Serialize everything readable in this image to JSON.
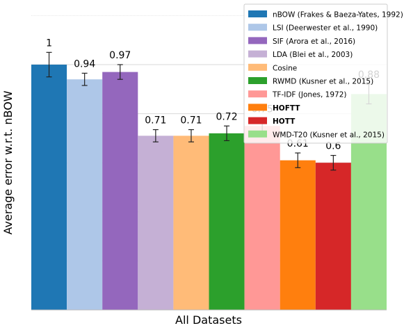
{
  "chart_data": {
    "type": "bar",
    "xlabel": "All Datasets",
    "ylabel": "Average error w.r.t. nBOW",
    "ylim": [
      0,
      1.2
    ],
    "grid": true,
    "legend_position": "top-right",
    "series": [
      {
        "name": "nBOW (Frakes & Baeza-Yates, 1992)",
        "value": 1.0,
        "label": "1",
        "error": 0.05,
        "color": "#1f77b4",
        "bold": false
      },
      {
        "name": "LSI (Deerwester et al., 1990)",
        "value": 0.94,
        "label": "0.94",
        "error": 0.025,
        "color": "#aec7e8",
        "bold": false
      },
      {
        "name": "SIF (Arora et al., 2016)",
        "value": 0.97,
        "label": "0.97",
        "error": 0.03,
        "color": "#9467bd",
        "bold": false
      },
      {
        "name": "LDA (Blei et al., 2003)",
        "value": 0.71,
        "label": "0.71",
        "error": 0.025,
        "color": "#c5b0d5",
        "bold": false
      },
      {
        "name": "Cosine",
        "value": 0.71,
        "label": "0.71",
        "error": 0.025,
        "color": "#ffbb78",
        "bold": false
      },
      {
        "name": "RWMD (Kusner et al., 2015)",
        "value": 0.72,
        "label": "0.72",
        "error": 0.03,
        "color": "#2ca02c",
        "bold": false
      },
      {
        "name": "TF-IDF (Jones, 1972)",
        "value": 0.75,
        "label": "0.75",
        "error": 0.03,
        "color": "#ff9896",
        "bold": false
      },
      {
        "name": "HOFTT",
        "value": 0.61,
        "label": "0.61",
        "error": 0.03,
        "color": "#ff7f0e",
        "bold": true
      },
      {
        "name": "HOTT",
        "value": 0.6,
        "label": "0.6",
        "error": 0.03,
        "color": "#d62728",
        "bold": true
      },
      {
        "name": "WMD-T20 (Kusner et al., 2015)",
        "value": 0.88,
        "label": "0.88",
        "error": 0.04,
        "color": "#98df8a",
        "bold": false
      }
    ]
  }
}
